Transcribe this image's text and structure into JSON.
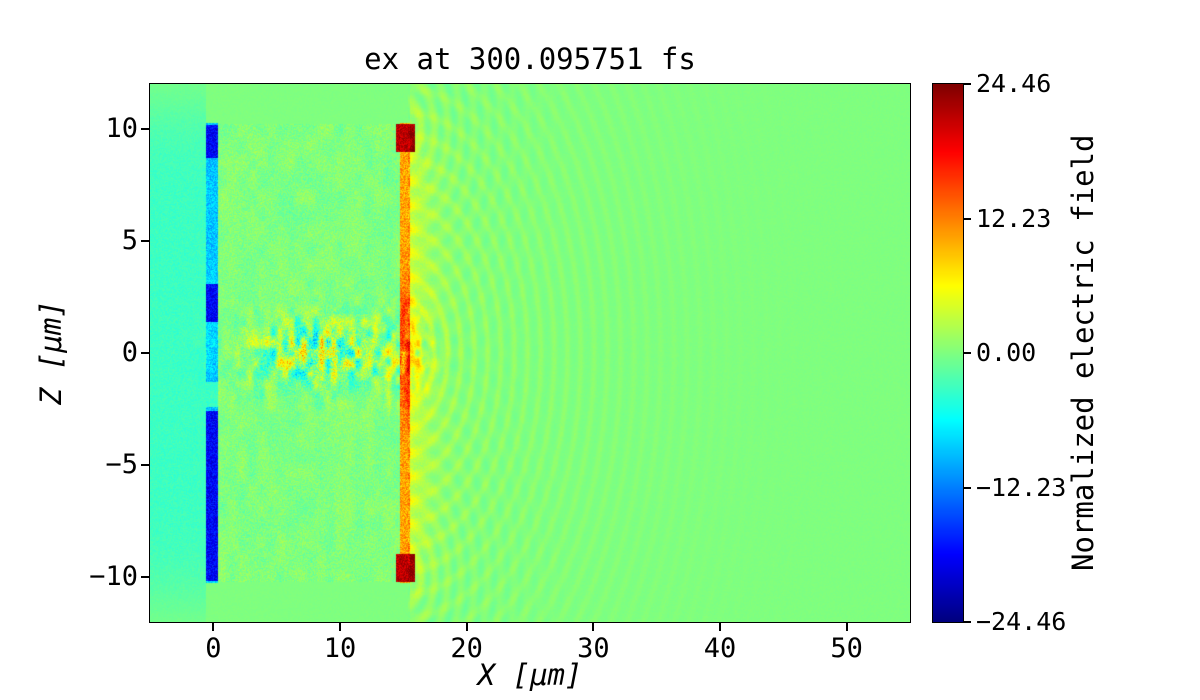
{
  "figure": {
    "background": "#ffffff"
  },
  "chart_data": {
    "type": "heatmap",
    "title": "ex at 300.095751 fs",
    "xlabel": "X [μm]",
    "ylabel": "Z [μm]",
    "colorbar_label": "Normalized electric field",
    "colormap": "jet",
    "xlim": [
      -5,
      55
    ],
    "zlim": [
      -12,
      12
    ],
    "clim": [
      -24.46,
      24.46
    ],
    "xticks": [
      0,
      10,
      20,
      30,
      40,
      50
    ],
    "xtick_labels": [
      "0",
      "10",
      "20",
      "30",
      "40",
      "50"
    ],
    "yticks": [
      10,
      5,
      0,
      -5,
      -10
    ],
    "ytick_labels": [
      "10",
      "5",
      "0",
      "−5",
      "−10"
    ],
    "colorbar_ticks": [
      24.46,
      12.23,
      0,
      -12.23,
      -24.46
    ],
    "colorbar_tick_labels": [
      "24.46",
      "12.23",
      "0.00",
      "−12.23",
      "−24.46"
    ],
    "grid": false,
    "features": {
      "background_noise": 0.5,
      "left_wash": {
        "x_max": -0.55,
        "value": -3.2,
        "noise": 1.8
      },
      "left_stripe": {
        "x": [
          -0.55,
          0.35
        ],
        "z_extent": 10.25,
        "value": -8.5,
        "noise": 5.0,
        "dark_value": -18.5,
        "dark_noise": 6.0,
        "dark_segments": [
          [
            -10.15,
            -2.6
          ],
          [
            1.4,
            3.1
          ],
          [
            8.7,
            10.15
          ]
        ],
        "light_segments": [
          [
            -2.4,
            -1.3
          ]
        ],
        "light_value": -3.5
      },
      "plasma_slab": {
        "x": [
          0.35,
          14.7
        ],
        "z_extent": 10.2,
        "noise": 3.2,
        "mottle": 1.8
      },
      "channel": {
        "center": [
          8.5,
          0
        ],
        "sigma": [
          6.0,
          1.7
        ],
        "amp": 9.5
      },
      "hot_channel": {
        "center": [
          14.6,
          0
        ],
        "sigma": [
          2.2,
          2.0
        ],
        "amp": 7.0,
        "bias": 0.3
      },
      "right_stripe": {
        "x": [
          14.7,
          15.55
        ],
        "z_extent": 10.25,
        "value": 10.5,
        "noise": 6.0,
        "warm_center_amp": 5.0,
        "warm_center_sigma": 2.6,
        "hot_value": 21.5,
        "hot_noise": 5.0,
        "hot_segments": [
          [
            -10.2,
            -8.95
          ],
          [
            8.95,
            10.2
          ]
        ],
        "hot_x": [
          14.4,
          15.95
        ]
      },
      "halo": {
        "amp": 4.2,
        "decay": 1.5
      },
      "ripples": {
        "center": [
          15.1,
          0
        ],
        "wavelength": 1.05,
        "amp": 3.2,
        "decay_scale": 7,
        "corners": [
          [
            15.1,
            10.0
          ],
          [
            15.1,
            -10.0
          ]
        ],
        "corner_amp": 1.5,
        "corner_decay": 5
      }
    }
  }
}
